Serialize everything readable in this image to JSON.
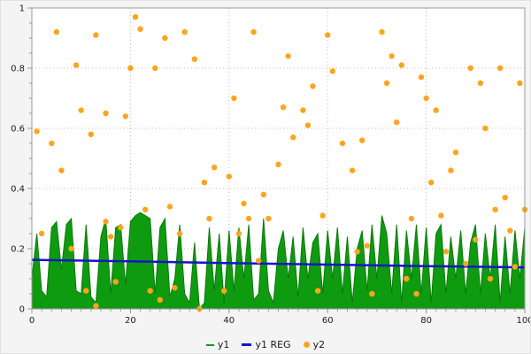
{
  "chart_data": {
    "type": "area",
    "title": "",
    "xlabel": "",
    "ylabel": "",
    "x_axis": {
      "min": 0,
      "max": 100,
      "major_ticks": [
        0,
        20,
        40,
        60,
        80,
        100
      ],
      "tick_labels": [
        "0",
        "20",
        "40",
        "60",
        "80",
        "100"
      ],
      "minor_step": 2
    },
    "y_axis": {
      "min": 0,
      "max": 1,
      "major_ticks": [
        0,
        0.2,
        0.4,
        0.6,
        0.8,
        1
      ],
      "tick_labels": [
        "0",
        "0.2",
        "0.4",
        "0.6",
        "0.8",
        "1"
      ],
      "minor_step": 0.05
    },
    "grid": true,
    "colors": {
      "background": "#f4f4f4",
      "plot_background": "#ffffff",
      "grid": "#bcbcbc",
      "border": "#9a9a9a",
      "y1": "#0f9b0f",
      "y1_stroke": "#0a7a0a",
      "y1_reg": "#1414c8",
      "y2": "#ffa41e",
      "tick_text": "#1a1a1a"
    },
    "series": [
      {
        "name": "y1",
        "type": "area",
        "x_start": 0,
        "x_step": 1,
        "values": [
          0.1,
          0.25,
          0.06,
          0.04,
          0.27,
          0.29,
          0.13,
          0.28,
          0.3,
          0.06,
          0.05,
          0.28,
          0.04,
          0.02,
          0.24,
          0.3,
          0.05,
          0.27,
          0.28,
          0.08,
          0.29,
          0.31,
          0.32,
          0.31,
          0.3,
          0.05,
          0.27,
          0.3,
          0.04,
          0.1,
          0.28,
          0.05,
          0.02,
          0.22,
          0.0,
          0.02,
          0.27,
          0.06,
          0.25,
          0.02,
          0.26,
          0.06,
          0.27,
          0.1,
          0.28,
          0.03,
          0.05,
          0.3,
          0.06,
          0.02,
          0.2,
          0.26,
          0.1,
          0.24,
          0.04,
          0.27,
          0.1,
          0.22,
          0.25,
          0.05,
          0.26,
          0.1,
          0.27,
          0.05,
          0.24,
          0.02,
          0.2,
          0.26,
          0.06,
          0.28,
          0.1,
          0.31,
          0.25,
          0.05,
          0.28,
          0.02,
          0.26,
          0.1,
          0.28,
          0.05,
          0.27,
          0.02,
          0.25,
          0.28,
          0.05,
          0.24,
          0.1,
          0.26,
          0.05,
          0.22,
          0.28,
          0.05,
          0.25,
          0.1,
          0.28,
          0.02,
          0.24,
          0.05,
          0.26,
          0.1,
          0.27
        ]
      },
      {
        "name": "y1 REG",
        "type": "line",
        "points": [
          [
            0,
            0.163
          ],
          [
            20,
            0.158
          ],
          [
            40,
            0.152
          ],
          [
            60,
            0.147
          ],
          [
            80,
            0.142
          ],
          [
            100,
            0.138
          ]
        ]
      },
      {
        "name": "y2",
        "type": "scatter",
        "points": [
          [
            1,
            0.59
          ],
          [
            2,
            0.25
          ],
          [
            4,
            0.55
          ],
          [
            5,
            0.92
          ],
          [
            6,
            0.46
          ],
          [
            8,
            0.2
          ],
          [
            9,
            0.81
          ],
          [
            10,
            0.66
          ],
          [
            11,
            0.06
          ],
          [
            12,
            0.58
          ],
          [
            13,
            0.01
          ],
          [
            13,
            0.91
          ],
          [
            15,
            0.65
          ],
          [
            15,
            0.29
          ],
          [
            16,
            0.24
          ],
          [
            17,
            0.09
          ],
          [
            18,
            0.27
          ],
          [
            19,
            0.64
          ],
          [
            20,
            0.8
          ],
          [
            21,
            0.97
          ],
          [
            22,
            0.93
          ],
          [
            23,
            0.33
          ],
          [
            24,
            0.06
          ],
          [
            25,
            0.8
          ],
          [
            26,
            0.03
          ],
          [
            27,
            0.9
          ],
          [
            28,
            0.34
          ],
          [
            29,
            0.07
          ],
          [
            30,
            0.25
          ],
          [
            31,
            0.92
          ],
          [
            33,
            0.83
          ],
          [
            34,
            0.0
          ],
          [
            35,
            0.42
          ],
          [
            36,
            0.3
          ],
          [
            37,
            0.47
          ],
          [
            39,
            0.06
          ],
          [
            40,
            0.44
          ],
          [
            41,
            0.7
          ],
          [
            42,
            0.25
          ],
          [
            43,
            0.35
          ],
          [
            44,
            0.3
          ],
          [
            45,
            0.92
          ],
          [
            46,
            0.16
          ],
          [
            47,
            0.38
          ],
          [
            48,
            0.3
          ],
          [
            50,
            0.48
          ],
          [
            51,
            0.67
          ],
          [
            52,
            0.84
          ],
          [
            53,
            0.57
          ],
          [
            55,
            0.66
          ],
          [
            56,
            0.61
          ],
          [
            57,
            0.74
          ],
          [
            58,
            0.06
          ],
          [
            59,
            0.31
          ],
          [
            60,
            0.91
          ],
          [
            61,
            0.79
          ],
          [
            63,
            0.55
          ],
          [
            65,
            0.46
          ],
          [
            66,
            0.19
          ],
          [
            67,
            0.56
          ],
          [
            68,
            0.21
          ],
          [
            69,
            0.05
          ],
          [
            71,
            0.92
          ],
          [
            72,
            0.75
          ],
          [
            73,
            0.84
          ],
          [
            74,
            0.62
          ],
          [
            75,
            0.81
          ],
          [
            76,
            0.1
          ],
          [
            77,
            0.3
          ],
          [
            78,
            0.05
          ],
          [
            79,
            0.77
          ],
          [
            80,
            0.7
          ],
          [
            81,
            0.42
          ],
          [
            82,
            0.66
          ],
          [
            83,
            0.31
          ],
          [
            84,
            0.19
          ],
          [
            85,
            0.46
          ],
          [
            86,
            0.52
          ],
          [
            88,
            0.15
          ],
          [
            89,
            0.8
          ],
          [
            90,
            0.23
          ],
          [
            91,
            0.75
          ],
          [
            92,
            0.6
          ],
          [
            93,
            0.1
          ],
          [
            94,
            0.33
          ],
          [
            95,
            0.8
          ],
          [
            96,
            0.37
          ],
          [
            97,
            0.26
          ],
          [
            98,
            0.14
          ],
          [
            99,
            0.75
          ],
          [
            100,
            0.33
          ]
        ]
      }
    ],
    "legend": {
      "position": "bottom",
      "items": [
        {
          "label": "y1",
          "marker": "line"
        },
        {
          "label": "y1 REG",
          "marker": "line-thick"
        },
        {
          "label": "y2",
          "marker": "dot"
        }
      ]
    }
  }
}
